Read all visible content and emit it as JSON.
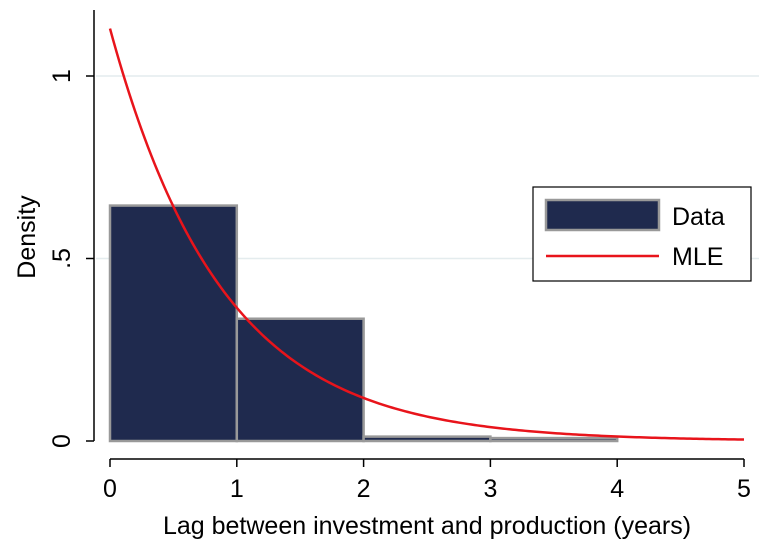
{
  "chart_data": {
    "type": "bar",
    "subtype": "histogram-with-density-curve",
    "title": "",
    "xlabel": "Lag between investment and production (years)",
    "ylabel": "Density",
    "xlim": [
      0,
      5
    ],
    "ylim": [
      0,
      1.16
    ],
    "x_ticks": [
      0,
      1,
      2,
      3,
      4,
      5
    ],
    "x_tick_labels": [
      "0",
      "1",
      "2",
      "3",
      "4",
      "5"
    ],
    "y_ticks": [
      0,
      0.5,
      1
    ],
    "y_tick_labels": [
      "0",
      ".5",
      "1"
    ],
    "grid": "horizontal",
    "legend_position": "right",
    "series": [
      {
        "name": "Data",
        "kind": "histogram",
        "color": "#1f2a4e",
        "edge_color": "#999999",
        "bins": [
          {
            "x0": 0,
            "x1": 1,
            "density": 0.645
          },
          {
            "x0": 1,
            "x1": 2,
            "density": 0.335
          },
          {
            "x0": 2,
            "x1": 3,
            "density": 0.012
          },
          {
            "x0": 3,
            "x1": 4,
            "density": 0.008
          }
        ]
      },
      {
        "name": "MLE",
        "kind": "line",
        "color": "#e8141b",
        "function": "exponential",
        "lambda": 1.13
      }
    ]
  }
}
